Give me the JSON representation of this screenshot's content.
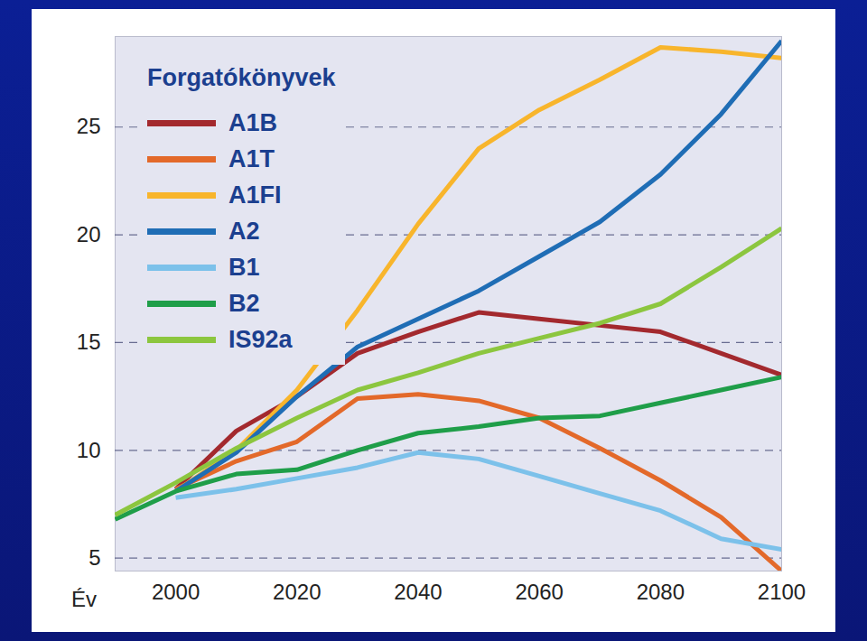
{
  "chart_data": {
    "type": "line",
    "legend_title": "Forgatókönyvek",
    "x_label": "Év",
    "x": [
      1990,
      2000,
      2010,
      2020,
      2030,
      2040,
      2050,
      2060,
      2070,
      2080,
      2090,
      2100
    ],
    "series": [
      {
        "name": "A1B",
        "color": "#a3292e",
        "values": [
          null,
          8.2,
          10.9,
          12.5,
          14.5,
          15.5,
          16.4,
          16.1,
          15.8,
          15.5,
          14.5,
          13.5
        ]
      },
      {
        "name": "A1T",
        "color": "#e3692a",
        "values": [
          null,
          8.2,
          9.5,
          10.4,
          12.4,
          12.6,
          12.3,
          11.5,
          10.1,
          8.6,
          6.9,
          4.4
        ]
      },
      {
        "name": "A1FI",
        "color": "#f8b52c",
        "values": [
          null,
          8.1,
          10.0,
          12.8,
          16.5,
          20.5,
          24.0,
          25.8,
          27.2,
          28.7,
          28.5,
          28.2
        ]
      },
      {
        "name": "A2",
        "color": "#1f6db5",
        "values": [
          null,
          8.1,
          9.9,
          12.5,
          14.8,
          16.1,
          17.4,
          19.0,
          20.6,
          22.8,
          25.6,
          29.0
        ]
      },
      {
        "name": "B1",
        "color": "#7cc1ea",
        "values": [
          null,
          7.8,
          8.2,
          8.7,
          9.2,
          9.9,
          9.6,
          8.8,
          8.0,
          7.2,
          5.9,
          5.4
        ]
      },
      {
        "name": "B2",
        "color": "#1f9e49",
        "values": [
          6.8,
          8.1,
          8.9,
          9.1,
          10.0,
          10.8,
          11.1,
          11.5,
          11.6,
          12.2,
          12.8,
          13.4
        ]
      },
      {
        "name": "IS92a",
        "color": "#8cc63f",
        "values": [
          7.0,
          8.5,
          10.1,
          11.5,
          12.8,
          13.6,
          14.5,
          15.2,
          15.9,
          16.8,
          18.5,
          20.3
        ]
      }
    ],
    "xlim": [
      1990,
      2100
    ],
    "xticks": [
      2000,
      2020,
      2040,
      2060,
      2080,
      2100
    ],
    "ylim": [
      4.4,
      29.2
    ],
    "yticks": [
      5,
      10,
      15,
      20,
      25
    ],
    "grid": true,
    "legend": "top-left"
  }
}
